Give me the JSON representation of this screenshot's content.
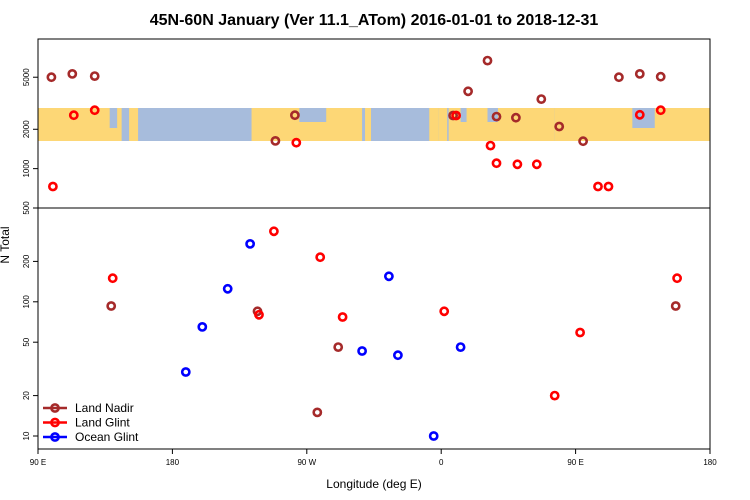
{
  "chart_data": {
    "type": "scatter",
    "title": "45N-60N January (Ver 11.1_ATom)   2016-01-01 to 2018-12-31",
    "xlabel": "Longitude (deg E)",
    "ylabel": "N Total",
    "x_scale": "linear",
    "y_scale": "log",
    "xlim": [
      90,
      540
    ],
    "ylim": [
      8,
      9800
    ],
    "x_ticks": [
      {
        "value": 90,
        "label": "90 E"
      },
      {
        "value": 180,
        "label": "180"
      },
      {
        "value": 270,
        "label": "90 W"
      },
      {
        "value": 360,
        "label": "0"
      },
      {
        "value": 450,
        "label": "90 E"
      },
      {
        "value": 540,
        "label": "180"
      }
    ],
    "y_ticks_lower": [
      {
        "value": 10,
        "label": "10"
      },
      {
        "value": 20,
        "label": "20"
      },
      {
        "value": 50,
        "label": "50"
      },
      {
        "value": 100,
        "label": "100"
      },
      {
        "value": 200,
        "label": "200"
      }
    ],
    "y_ticks_upper": [
      {
        "value": 500,
        "label": "500"
      },
      {
        "value": 1000,
        "label": "1000"
      },
      {
        "value": 2000,
        "label": "2000"
      },
      {
        "value": 5000,
        "label": "5000"
      }
    ],
    "panel_divider": 500,
    "legend_position": "bottom-left",
    "grid": false,
    "series": [
      {
        "name": "Land Nadir",
        "color": "#a52a2a",
        "points": [
          {
            "x": 99,
            "y": 5000
          },
          {
            "x": 113,
            "y": 5300
          },
          {
            "x": 128,
            "y": 5100
          },
          {
            "x": 139,
            "y": 93
          },
          {
            "x": 237,
            "y": 85
          },
          {
            "x": 249,
            "y": 1630
          },
          {
            "x": 262,
            "y": 2560
          },
          {
            "x": 277,
            "y": 15
          },
          {
            "x": 291,
            "y": 46
          },
          {
            "x": 368,
            "y": 2550
          },
          {
            "x": 378,
            "y": 3900
          },
          {
            "x": 391,
            "y": 6700
          },
          {
            "x": 397,
            "y": 2500
          },
          {
            "x": 410,
            "y": 2450
          },
          {
            "x": 427,
            "y": 3400
          },
          {
            "x": 439,
            "y": 2100
          },
          {
            "x": 455,
            "y": 1620
          },
          {
            "x": 479,
            "y": 5000
          },
          {
            "x": 493,
            "y": 5300
          },
          {
            "x": 507,
            "y": 5050
          },
          {
            "x": 517,
            "y": 93
          }
        ]
      },
      {
        "name": "Land Glint",
        "color": "#ff0000",
        "points": [
          {
            "x": 100,
            "y": 730
          },
          {
            "x": 114,
            "y": 2560
          },
          {
            "x": 128,
            "y": 2800
          },
          {
            "x": 140,
            "y": 150
          },
          {
            "x": 238,
            "y": 80
          },
          {
            "x": 248,
            "y": 335
          },
          {
            "x": 263,
            "y": 1580
          },
          {
            "x": 279,
            "y": 215
          },
          {
            "x": 294,
            "y": 77
          },
          {
            "x": 362,
            "y": 85
          },
          {
            "x": 370,
            "y": 2550
          },
          {
            "x": 393,
            "y": 1500
          },
          {
            "x": 397,
            "y": 1100
          },
          {
            "x": 411,
            "y": 1080
          },
          {
            "x": 424,
            "y": 1080
          },
          {
            "x": 436,
            "y": 20
          },
          {
            "x": 453,
            "y": 59
          },
          {
            "x": 465,
            "y": 730
          },
          {
            "x": 472,
            "y": 730
          },
          {
            "x": 493,
            "y": 2580
          },
          {
            "x": 507,
            "y": 2800
          },
          {
            "x": 518,
            "y": 150
          }
        ]
      },
      {
        "name": "Ocean Glint",
        "color": "#0000ff",
        "points": [
          {
            "x": 189,
            "y": 30
          },
          {
            "x": 200,
            "y": 65
          },
          {
            "x": 217,
            "y": 125
          },
          {
            "x": 232,
            "y": 270
          },
          {
            "x": 307,
            "y": 43
          },
          {
            "x": 325,
            "y": 155
          },
          {
            "x": 331,
            "y": 40
          },
          {
            "x": 355,
            "y": 10
          },
          {
            "x": 373,
            "y": 46
          }
        ]
      }
    ],
    "colors": {
      "ocean": "#a7bcdc",
      "land": "#fdd776",
      "axis": "#000000",
      "background": "#ffffff"
    }
  }
}
